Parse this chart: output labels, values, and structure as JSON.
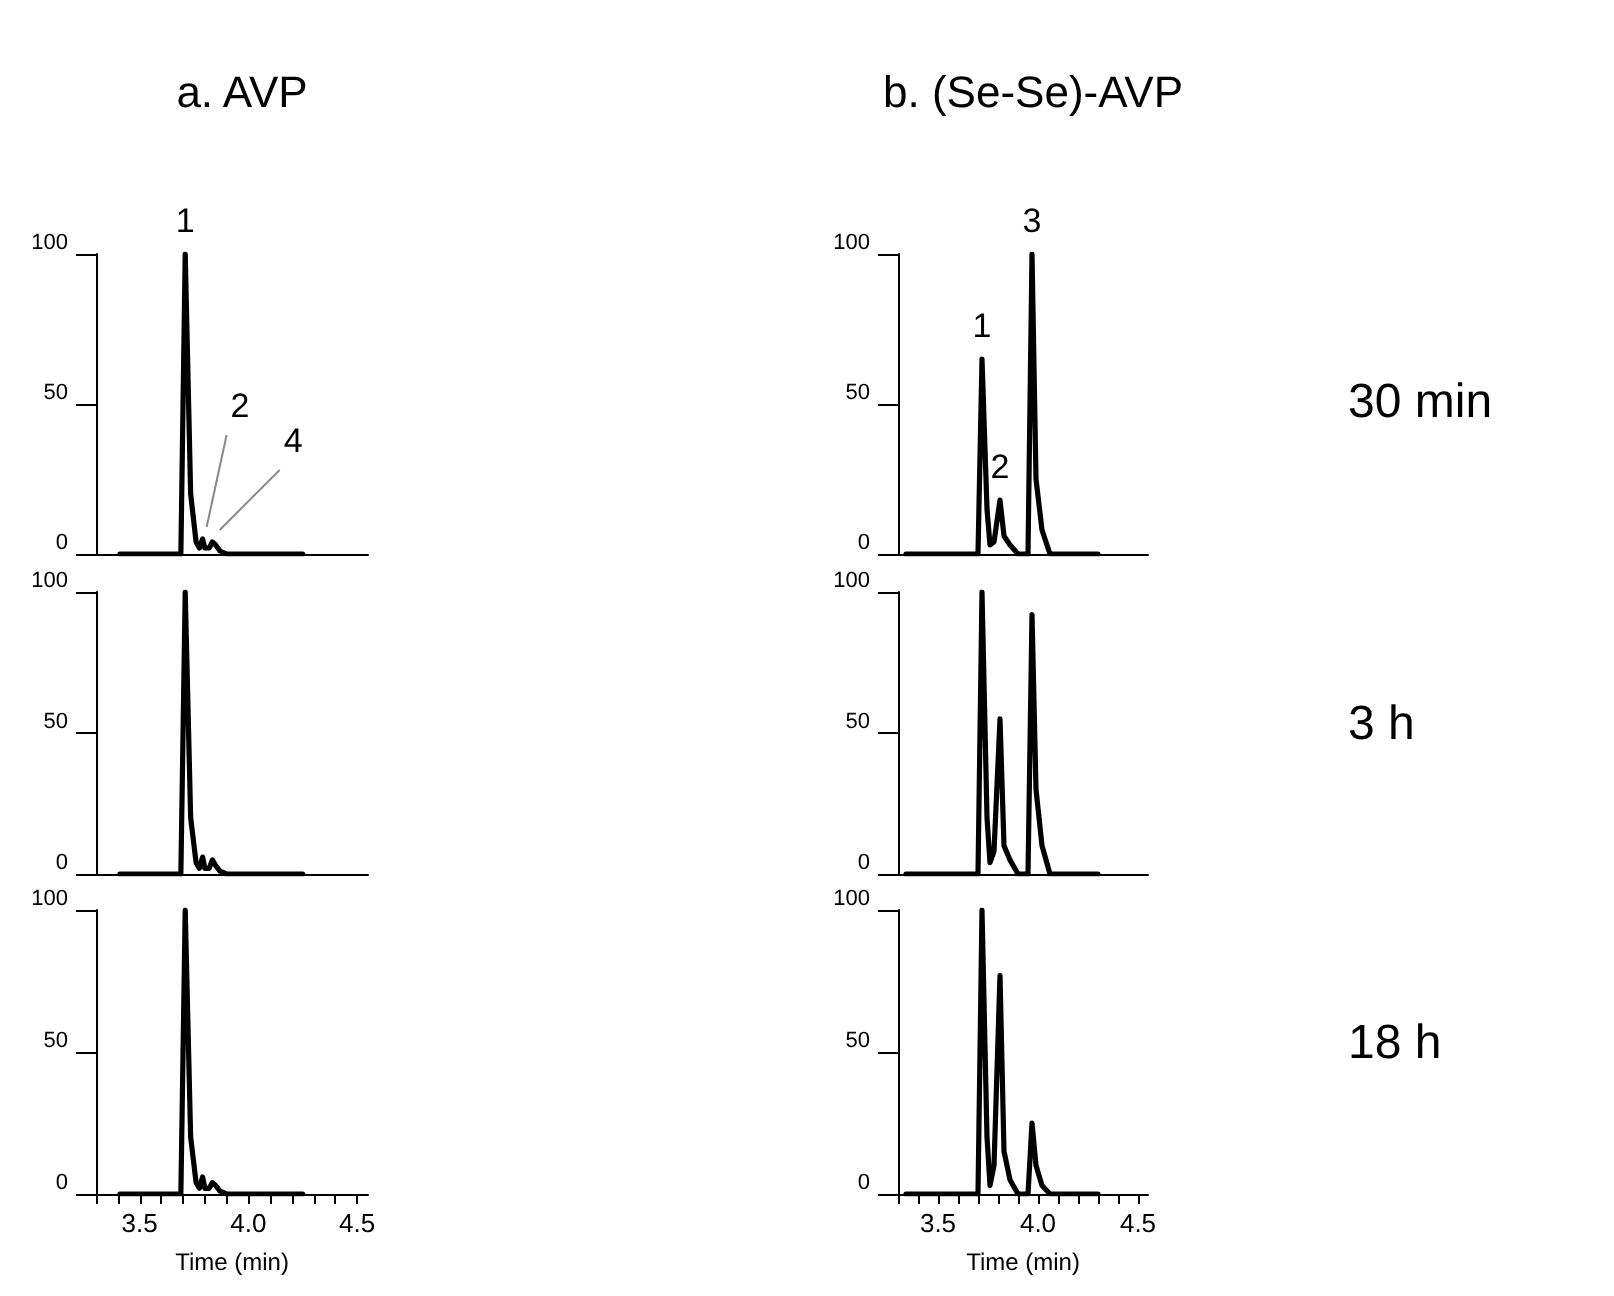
{
  "chart_data": [
    {
      "type": "line",
      "title": "a. AVP",
      "xlim": [
        3.3,
        4.55
      ],
      "ylim": [
        0,
        100
      ],
      "yticks": [
        0,
        50,
        100
      ],
      "tick_labels": "y",
      "grid": false,
      "marker": "none",
      "line_style": "solid",
      "x": [
        3.41,
        3.69,
        3.71,
        3.735,
        3.76,
        3.775,
        3.79,
        3.8,
        3.82,
        3.835,
        3.85,
        3.87,
        3.9,
        3.95,
        4.25
      ],
      "series": [
        {
          "color": "#000000",
          "values": [
            0,
            0,
            100,
            20,
            4,
            2,
            5,
            2,
            2,
            4,
            3,
            1,
            0,
            0,
            0
          ]
        }
      ],
      "annotations": [
        {
          "text": "1",
          "x": 3.71,
          "y": 100
        },
        {
          "text": "2",
          "x": 3.79,
          "y": 5
        },
        {
          "text": "4",
          "x": 3.85,
          "y": 4
        }
      ]
    },
    {
      "type": "line",
      "title": "b. (Se-Se)-AVP",
      "xlim": [
        3.3,
        4.55
      ],
      "ylim": [
        0,
        100
      ],
      "yticks": [
        0,
        50,
        100
      ],
      "tick_labels": "y",
      "grid": false,
      "marker": "none",
      "line_style": "solid",
      "x": [
        3.34,
        3.7,
        3.72,
        3.745,
        3.76,
        3.78,
        3.81,
        3.83,
        3.86,
        3.9,
        3.95,
        3.97,
        3.99,
        4.02,
        4.06,
        4.3
      ],
      "series": [
        {
          "color": "#000000",
          "values": [
            0,
            0,
            65,
            15,
            3,
            4,
            18,
            6,
            3,
            0,
            0,
            100,
            25,
            8,
            0,
            0
          ]
        }
      ],
      "annotations": [
        {
          "text": "1",
          "x": 3.72,
          "y": 65
        },
        {
          "text": "2",
          "x": 3.81,
          "y": 18
        },
        {
          "text": "3",
          "x": 3.97,
          "y": 100
        },
        "30 min"
      ]
    },
    {
      "type": "line",
      "xlim": [
        3.3,
        4.55
      ],
      "ylim": [
        0,
        100
      ],
      "yticks": [
        0,
        50,
        100
      ],
      "tick_labels": "y",
      "grid": false,
      "marker": "none",
      "line_style": "solid",
      "x": [
        3.41,
        3.69,
        3.71,
        3.735,
        3.76,
        3.775,
        3.79,
        3.8,
        3.82,
        3.835,
        3.85,
        3.87,
        3.9,
        3.95,
        4.25
      ],
      "series": [
        {
          "color": "#000000",
          "values": [
            0,
            0,
            100,
            20,
            4,
            2,
            6,
            2,
            2,
            5,
            3,
            1,
            0,
            0,
            0
          ]
        }
      ]
    },
    {
      "type": "line",
      "xlim": [
        3.3,
        4.55
      ],
      "ylim": [
        0,
        100
      ],
      "yticks": [
        0,
        50,
        100
      ],
      "tick_labels": "y",
      "grid": false,
      "marker": "none",
      "line_style": "solid",
      "x": [
        3.34,
        3.7,
        3.72,
        3.745,
        3.76,
        3.78,
        3.81,
        3.83,
        3.86,
        3.9,
        3.95,
        3.97,
        3.99,
        4.02,
        4.06,
        4.3
      ],
      "series": [
        {
          "color": "#000000",
          "values": [
            0,
            0,
            100,
            20,
            4,
            8,
            55,
            10,
            5,
            0,
            0,
            92,
            30,
            10,
            0,
            0
          ]
        }
      ],
      "annotations": [
        "3 h"
      ]
    },
    {
      "type": "line",
      "xlabel": "Time (min)",
      "xlim": [
        3.3,
        4.55
      ],
      "ylim": [
        0,
        100
      ],
      "yticks": [
        0,
        50,
        100
      ],
      "grid": false,
      "marker": "none",
      "line_style": "solid",
      "xticks": [
        {
          "value": 3.3,
          "label": null
        },
        {
          "value": 3.4,
          "label": null
        },
        {
          "value": 3.5,
          "label": "3.5"
        },
        {
          "value": 3.6,
          "label": null
        },
        {
          "value": 3.7,
          "label": null
        },
        {
          "value": 3.8,
          "label": null
        },
        {
          "value": 3.9,
          "label": null
        },
        {
          "value": 4.0,
          "label": "4.0"
        },
        {
          "value": 4.1,
          "label": null
        },
        {
          "value": 4.2,
          "label": null
        },
        {
          "value": 4.3,
          "label": null
        },
        {
          "value": 4.4,
          "label": null
        },
        {
          "value": 4.5,
          "label": "4.5"
        }
      ],
      "x": [
        3.41,
        3.69,
        3.71,
        3.735,
        3.76,
        3.775,
        3.79,
        3.8,
        3.82,
        3.835,
        3.85,
        3.87,
        3.9,
        3.95,
        4.25
      ],
      "series": [
        {
          "color": "#000000",
          "values": [
            0,
            0,
            100,
            20,
            4,
            2,
            6,
            2,
            2,
            4,
            3,
            1,
            0,
            0,
            0
          ]
        }
      ]
    },
    {
      "type": "line",
      "xlabel": "Time (min)",
      "xlim": [
        3.3,
        4.55
      ],
      "ylim": [
        0,
        100
      ],
      "yticks": [
        0,
        50,
        100
      ],
      "grid": false,
      "marker": "none",
      "line_style": "solid",
      "xticks": [
        {
          "value": 3.3,
          "label": null
        },
        {
          "value": 3.4,
          "label": null
        },
        {
          "value": 3.5,
          "label": "3.5"
        },
        {
          "value": 3.6,
          "label": null
        },
        {
          "value": 3.7,
          "label": null
        },
        {
          "value": 3.8,
          "label": null
        },
        {
          "value": 3.9,
          "label": null
        },
        {
          "value": 4.0,
          "label": "4.0"
        },
        {
          "value": 4.1,
          "label": null
        },
        {
          "value": 4.2,
          "label": null
        },
        {
          "value": 4.3,
          "label": null
        },
        {
          "value": 4.4,
          "label": null
        },
        {
          "value": 4.5,
          "label": "4.5"
        }
      ],
      "x": [
        3.34,
        3.7,
        3.72,
        3.745,
        3.76,
        3.78,
        3.81,
        3.83,
        3.86,
        3.9,
        3.95,
        3.97,
        3.99,
        4.02,
        4.06,
        4.3
      ],
      "series": [
        {
          "color": "#000000",
          "values": [
            0,
            0,
            100,
            20,
            3,
            10,
            77,
            15,
            5,
            0,
            0,
            25,
            10,
            3,
            0,
            0
          ]
        }
      ],
      "annotations": [
        "18 h"
      ]
    }
  ]
}
